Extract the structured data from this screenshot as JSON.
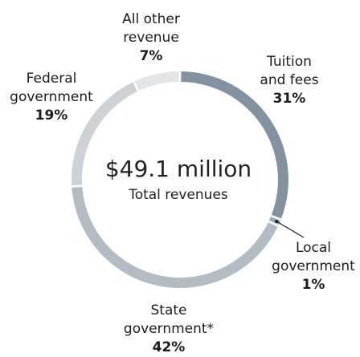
{
  "chart_data": {
    "type": "pie",
    "center_value": "$49.1 million",
    "center_caption": "Total revenues",
    "slices": [
      {
        "name_lines": [
          "Tuition",
          "and fees"
        ],
        "value": 31,
        "label": "31%",
        "color": "#8193a0"
      },
      {
        "name_lines": [
          "Local",
          "government"
        ],
        "value": 1,
        "label": "1%",
        "color": "#9aa7b1"
      },
      {
        "name_lines": [
          "State",
          "government*"
        ],
        "value": 42,
        "label": "42%",
        "color": "#b3bcc4"
      },
      {
        "name_lines": [
          "Federal",
          "government"
        ],
        "value": 19,
        "label": "19%",
        "color": "#cdd2d7"
      },
      {
        "name_lines": [
          "All other",
          "revenue"
        ],
        "value": 7,
        "label": "7%",
        "color": "#e3e6e9"
      }
    ]
  }
}
